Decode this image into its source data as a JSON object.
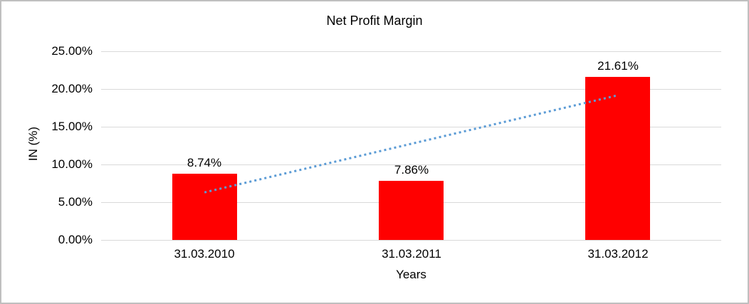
{
  "chart_data": {
    "type": "bar",
    "title": "Net Profit Margin",
    "categories": [
      "31.03.2010",
      "31.03.2011",
      "31.03.2012"
    ],
    "values": [
      8.74,
      7.86,
      21.61
    ],
    "data_labels": [
      "8.74%",
      "7.86%",
      "21.61%"
    ],
    "xlabel": "Years",
    "ylabel": "IN (%)",
    "ylim": [
      0,
      25
    ],
    "ytick_step": 5,
    "ytick_labels": [
      "0.00%",
      "5.00%",
      "10.00%",
      "15.00%",
      "20.00%",
      "25.00%"
    ],
    "grid": true,
    "legend": "none",
    "colors": {
      "bar": "#ff0000",
      "gridline": "#d9d9d9",
      "axis_line": "#d9d9d9",
      "text": "#000000",
      "frame_border": "#bfbfbf",
      "trendline": "#5b9bd5"
    },
    "trendline": {
      "type": "linear",
      "style": "dotted",
      "start_value": 6.3,
      "end_value": 19.17
    }
  }
}
